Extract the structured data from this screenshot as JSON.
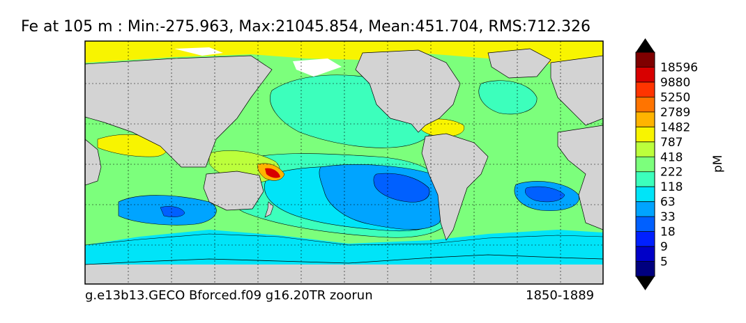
{
  "map": {
    "title": "Fe at 105 m : Min:-275.963, Max:21045.854, Mean:451.704, RMS:712.326",
    "footer_left": "g.e13b13.GECO Bforced.f09 g16.20TR zoorun",
    "footer_right": "1850-1889",
    "colorbar": {
      "unit": "pM",
      "levels": [
        "5",
        "9",
        "18",
        "33",
        "63",
        "118",
        "222",
        "418",
        "787",
        "1482",
        "2789",
        "5250",
        "9880",
        "18596"
      ],
      "colors": [
        "#00007f",
        "#0000c8",
        "#0020ff",
        "#0060ff",
        "#00a4ff",
        "#00e4f8",
        "#3cffbc",
        "#7cff7c",
        "#bcff3c",
        "#f8f400",
        "#ffb400",
        "#ff7400",
        "#ff3400",
        "#d80000",
        "#7f0000"
      ]
    },
    "colors": {
      "land": "#d3d3d3",
      "ice": "#ffffff"
    }
  }
}
